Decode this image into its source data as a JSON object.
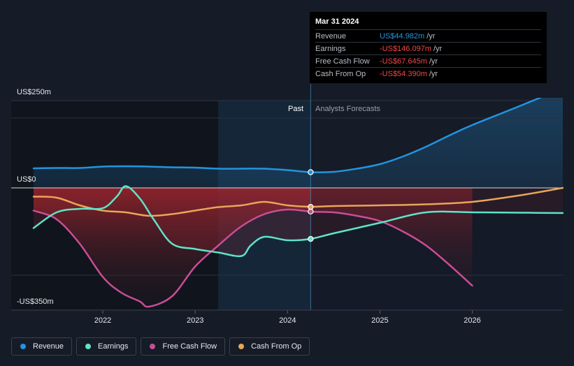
{
  "tooltip": {
    "date": "Mar 31 2024",
    "rows": [
      {
        "label": "Revenue",
        "value": "US$44.982m",
        "unit": "/yr",
        "sign": "pos"
      },
      {
        "label": "Earnings",
        "value": "-US$146.097m",
        "unit": "/yr",
        "sign": "neg"
      },
      {
        "label": "Free Cash Flow",
        "value": "-US$67.645m",
        "unit": "/yr",
        "sign": "neg"
      },
      {
        "label": "Cash From Op",
        "value": "-US$54.390m",
        "unit": "/yr",
        "sign": "neg"
      }
    ]
  },
  "axis": {
    "y_top_label": "US$250m",
    "y_zero_label": "US$0",
    "y_bottom_label": "-US$350m"
  },
  "regions": {
    "past_label": "Past",
    "forecast_label": "Analysts Forecasts"
  },
  "legend": [
    {
      "label": "Revenue",
      "color": "#2394df"
    },
    {
      "label": "Earnings",
      "color": "#5fe3c9"
    },
    {
      "label": "Free Cash Flow",
      "color": "#c94d97"
    },
    {
      "label": "Cash From Op",
      "color": "#e8a55a"
    }
  ],
  "chart_data": {
    "type": "line",
    "title": "",
    "xlabel": "",
    "ylabel": "",
    "ylim": [
      -350,
      250
    ],
    "x_range": [
      2021.25,
      2026.98
    ],
    "x_ticks": [
      2022,
      2023,
      2024,
      2025,
      2026
    ],
    "x_tick_labels": [
      "2022",
      "2023",
      "2024",
      "2025",
      "2026"
    ],
    "past_end": 2024.25,
    "highlight_start": 2023.25,
    "series": [
      {
        "name": "Revenue",
        "color": "#2394df",
        "x": [
          2021.25,
          2021.5,
          2021.75,
          2022.0,
          2022.25,
          2022.5,
          2022.75,
          2023.0,
          2023.25,
          2023.5,
          2023.75,
          2024.0,
          2024.25,
          2024.5,
          2024.75,
          2025.0,
          2025.25,
          2025.5,
          2025.75,
          2026.0,
          2026.5,
          2026.98
        ],
        "values": [
          56,
          57,
          57,
          61,
          62,
          61,
          59,
          58,
          55,
          55,
          55,
          51,
          45,
          46,
          55,
          68,
          90,
          118,
          150,
          180,
          233,
          285
        ]
      },
      {
        "name": "Earnings",
        "color": "#5fe3c9",
        "x": [
          2021.25,
          2021.5,
          2021.75,
          2022.0,
          2022.15,
          2022.25,
          2022.4,
          2022.55,
          2022.75,
          2023.0,
          2023.25,
          2023.5,
          2023.6,
          2023.75,
          2024.0,
          2024.25,
          2024.5,
          2025.0,
          2025.5,
          2026.0,
          2026.5,
          2026.98
        ],
        "values": [
          -115,
          -70,
          -60,
          -58,
          -25,
          5,
          -30,
          -90,
          -160,
          -175,
          -185,
          -195,
          -165,
          -140,
          -150,
          -146,
          -130,
          -100,
          -70,
          -70,
          -71,
          -72
        ]
      },
      {
        "name": "Free Cash Flow",
        "color": "#c94d97",
        "x": [
          2021.25,
          2021.5,
          2021.75,
          2022.0,
          2022.2,
          2022.4,
          2022.5,
          2022.75,
          2023.0,
          2023.25,
          2023.5,
          2023.75,
          2024.0,
          2024.25,
          2024.5,
          2024.75,
          2025.0,
          2025.25,
          2025.5,
          2025.75,
          2026.0
        ],
        "values": [
          -65,
          -90,
          -160,
          -255,
          -300,
          -325,
          -340,
          -310,
          -225,
          -165,
          -110,
          -75,
          -62,
          -68,
          -70,
          -80,
          -95,
          -125,
          -165,
          -220,
          -280
        ]
      },
      {
        "name": "Cash From Op",
        "color": "#e8a55a",
        "x": [
          2021.25,
          2021.5,
          2021.75,
          2022.0,
          2022.25,
          2022.5,
          2022.75,
          2023.0,
          2023.25,
          2023.5,
          2023.75,
          2024.0,
          2024.25,
          2024.5,
          2025.0,
          2025.5,
          2026.0,
          2026.5,
          2026.98
        ],
        "values": [
          -25,
          -28,
          -50,
          -65,
          -70,
          -80,
          -75,
          -65,
          -55,
          -50,
          -40,
          -50,
          -54,
          -52,
          -50,
          -47,
          -40,
          -22,
          0
        ]
      }
    ],
    "highlighted_points": [
      {
        "series": "Revenue",
        "x": 2024.25,
        "y": 44.982
      },
      {
        "series": "Earnings",
        "x": 2024.25,
        "y": -146.097
      },
      {
        "series": "Free Cash Flow",
        "x": 2024.25,
        "y": -67.645
      },
      {
        "series": "Cash From Op",
        "x": 2024.25,
        "y": -54.39
      }
    ]
  }
}
